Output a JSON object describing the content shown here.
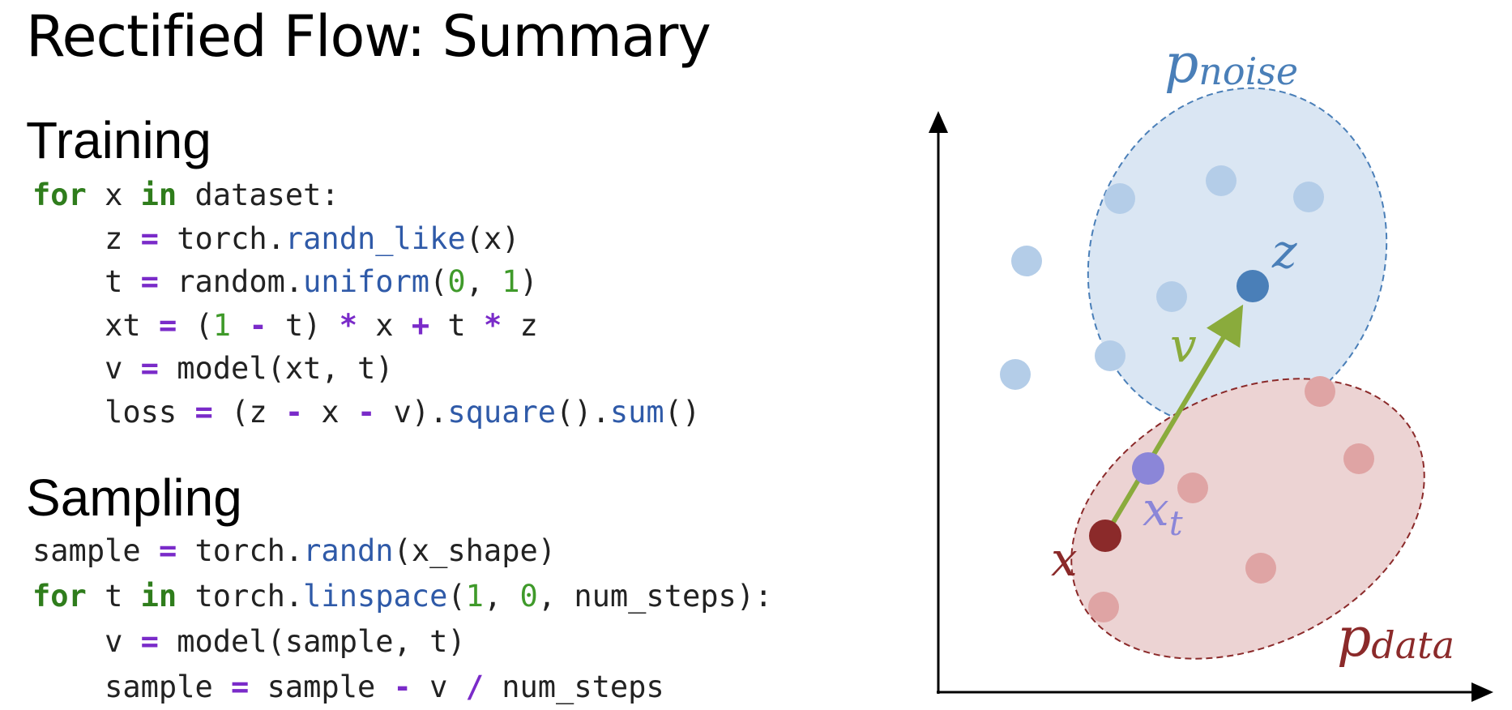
{
  "title": "Rectified Flow: Summary",
  "training": {
    "heading": "Training",
    "lines": [
      [
        {
          "t": "kw",
          "s": "for"
        },
        {
          "t": "txt",
          "s": " x "
        },
        {
          "t": "kw",
          "s": "in"
        },
        {
          "t": "txt",
          "s": " dataset:"
        }
      ],
      [
        {
          "t": "txt",
          "s": "    z "
        },
        {
          "t": "op",
          "s": "="
        },
        {
          "t": "txt",
          "s": " torch."
        },
        {
          "t": "fn",
          "s": "randn_like"
        },
        {
          "t": "txt",
          "s": "(x)"
        }
      ],
      [
        {
          "t": "txt",
          "s": "    t "
        },
        {
          "t": "op",
          "s": "="
        },
        {
          "t": "txt",
          "s": " random."
        },
        {
          "t": "fn",
          "s": "uniform"
        },
        {
          "t": "txt",
          "s": "("
        },
        {
          "t": "num",
          "s": "0"
        },
        {
          "t": "txt",
          "s": ", "
        },
        {
          "t": "num",
          "s": "1"
        },
        {
          "t": "txt",
          "s": ")"
        }
      ],
      [
        {
          "t": "txt",
          "s": "    xt "
        },
        {
          "t": "op",
          "s": "="
        },
        {
          "t": "txt",
          "s": " ("
        },
        {
          "t": "num",
          "s": "1"
        },
        {
          "t": "txt",
          "s": " "
        },
        {
          "t": "op",
          "s": "-"
        },
        {
          "t": "txt",
          "s": " t) "
        },
        {
          "t": "op",
          "s": "*"
        },
        {
          "t": "txt",
          "s": " x "
        },
        {
          "t": "op",
          "s": "+"
        },
        {
          "t": "txt",
          "s": " t "
        },
        {
          "t": "op",
          "s": "*"
        },
        {
          "t": "txt",
          "s": " z"
        }
      ],
      [
        {
          "t": "txt",
          "s": "    v "
        },
        {
          "t": "op",
          "s": "="
        },
        {
          "t": "txt",
          "s": " model(xt, t)"
        }
      ],
      [
        {
          "t": "txt",
          "s": "    loss "
        },
        {
          "t": "op",
          "s": "="
        },
        {
          "t": "txt",
          "s": " (z "
        },
        {
          "t": "op",
          "s": "-"
        },
        {
          "t": "txt",
          "s": " x "
        },
        {
          "t": "op",
          "s": "-"
        },
        {
          "t": "txt",
          "s": " v)."
        },
        {
          "t": "fn",
          "s": "square"
        },
        {
          "t": "txt",
          "s": "()."
        },
        {
          "t": "fn",
          "s": "sum"
        },
        {
          "t": "txt",
          "s": "()"
        }
      ]
    ]
  },
  "sampling": {
    "heading": "Sampling",
    "lines": [
      [
        {
          "t": "txt",
          "s": "sample "
        },
        {
          "t": "op",
          "s": "="
        },
        {
          "t": "txt",
          "s": " torch."
        },
        {
          "t": "fn",
          "s": "randn"
        },
        {
          "t": "txt",
          "s": "(x_shape)"
        }
      ],
      [
        {
          "t": "kw",
          "s": "for"
        },
        {
          "t": "txt",
          "s": " t "
        },
        {
          "t": "kw",
          "s": "in"
        },
        {
          "t": "txt",
          "s": " torch."
        },
        {
          "t": "fn",
          "s": "linspace"
        },
        {
          "t": "txt",
          "s": "("
        },
        {
          "t": "num",
          "s": "1"
        },
        {
          "t": "txt",
          "s": ", "
        },
        {
          "t": "num",
          "s": "0"
        },
        {
          "t": "txt",
          "s": ", num_steps):"
        }
      ],
      [
        {
          "t": "txt",
          "s": "    v "
        },
        {
          "t": "op",
          "s": "="
        },
        {
          "t": "txt",
          "s": " model(sample, t)"
        }
      ],
      [
        {
          "t": "txt",
          "s": "    sample "
        },
        {
          "t": "op",
          "s": "="
        },
        {
          "t": "txt",
          "s": " sample "
        },
        {
          "t": "op",
          "s": "-"
        },
        {
          "t": "txt",
          "s": " v "
        },
        {
          "t": "op",
          "s": "/"
        },
        {
          "t": "txt",
          "s": " num_steps"
        }
      ]
    ]
  },
  "diagram": {
    "labels": {
      "p_noise_base": "p",
      "p_noise_sub": "noise",
      "p_data_base": "p",
      "p_data_sub": "data",
      "z": "z",
      "v": "v",
      "x": "x",
      "xt_base": "x",
      "xt_sub": "t"
    },
    "colors": {
      "noise": "#4a7fb8",
      "noise_fill": "#dae6f3",
      "noise_dot": "#b4cde8",
      "data": "#8b2a2a",
      "data_fill": "#ecd3d3",
      "data_dot": "#dfa4a4",
      "vector": "#8aab3c",
      "xt": "#8b86d8",
      "axis": "#000000"
    }
  }
}
